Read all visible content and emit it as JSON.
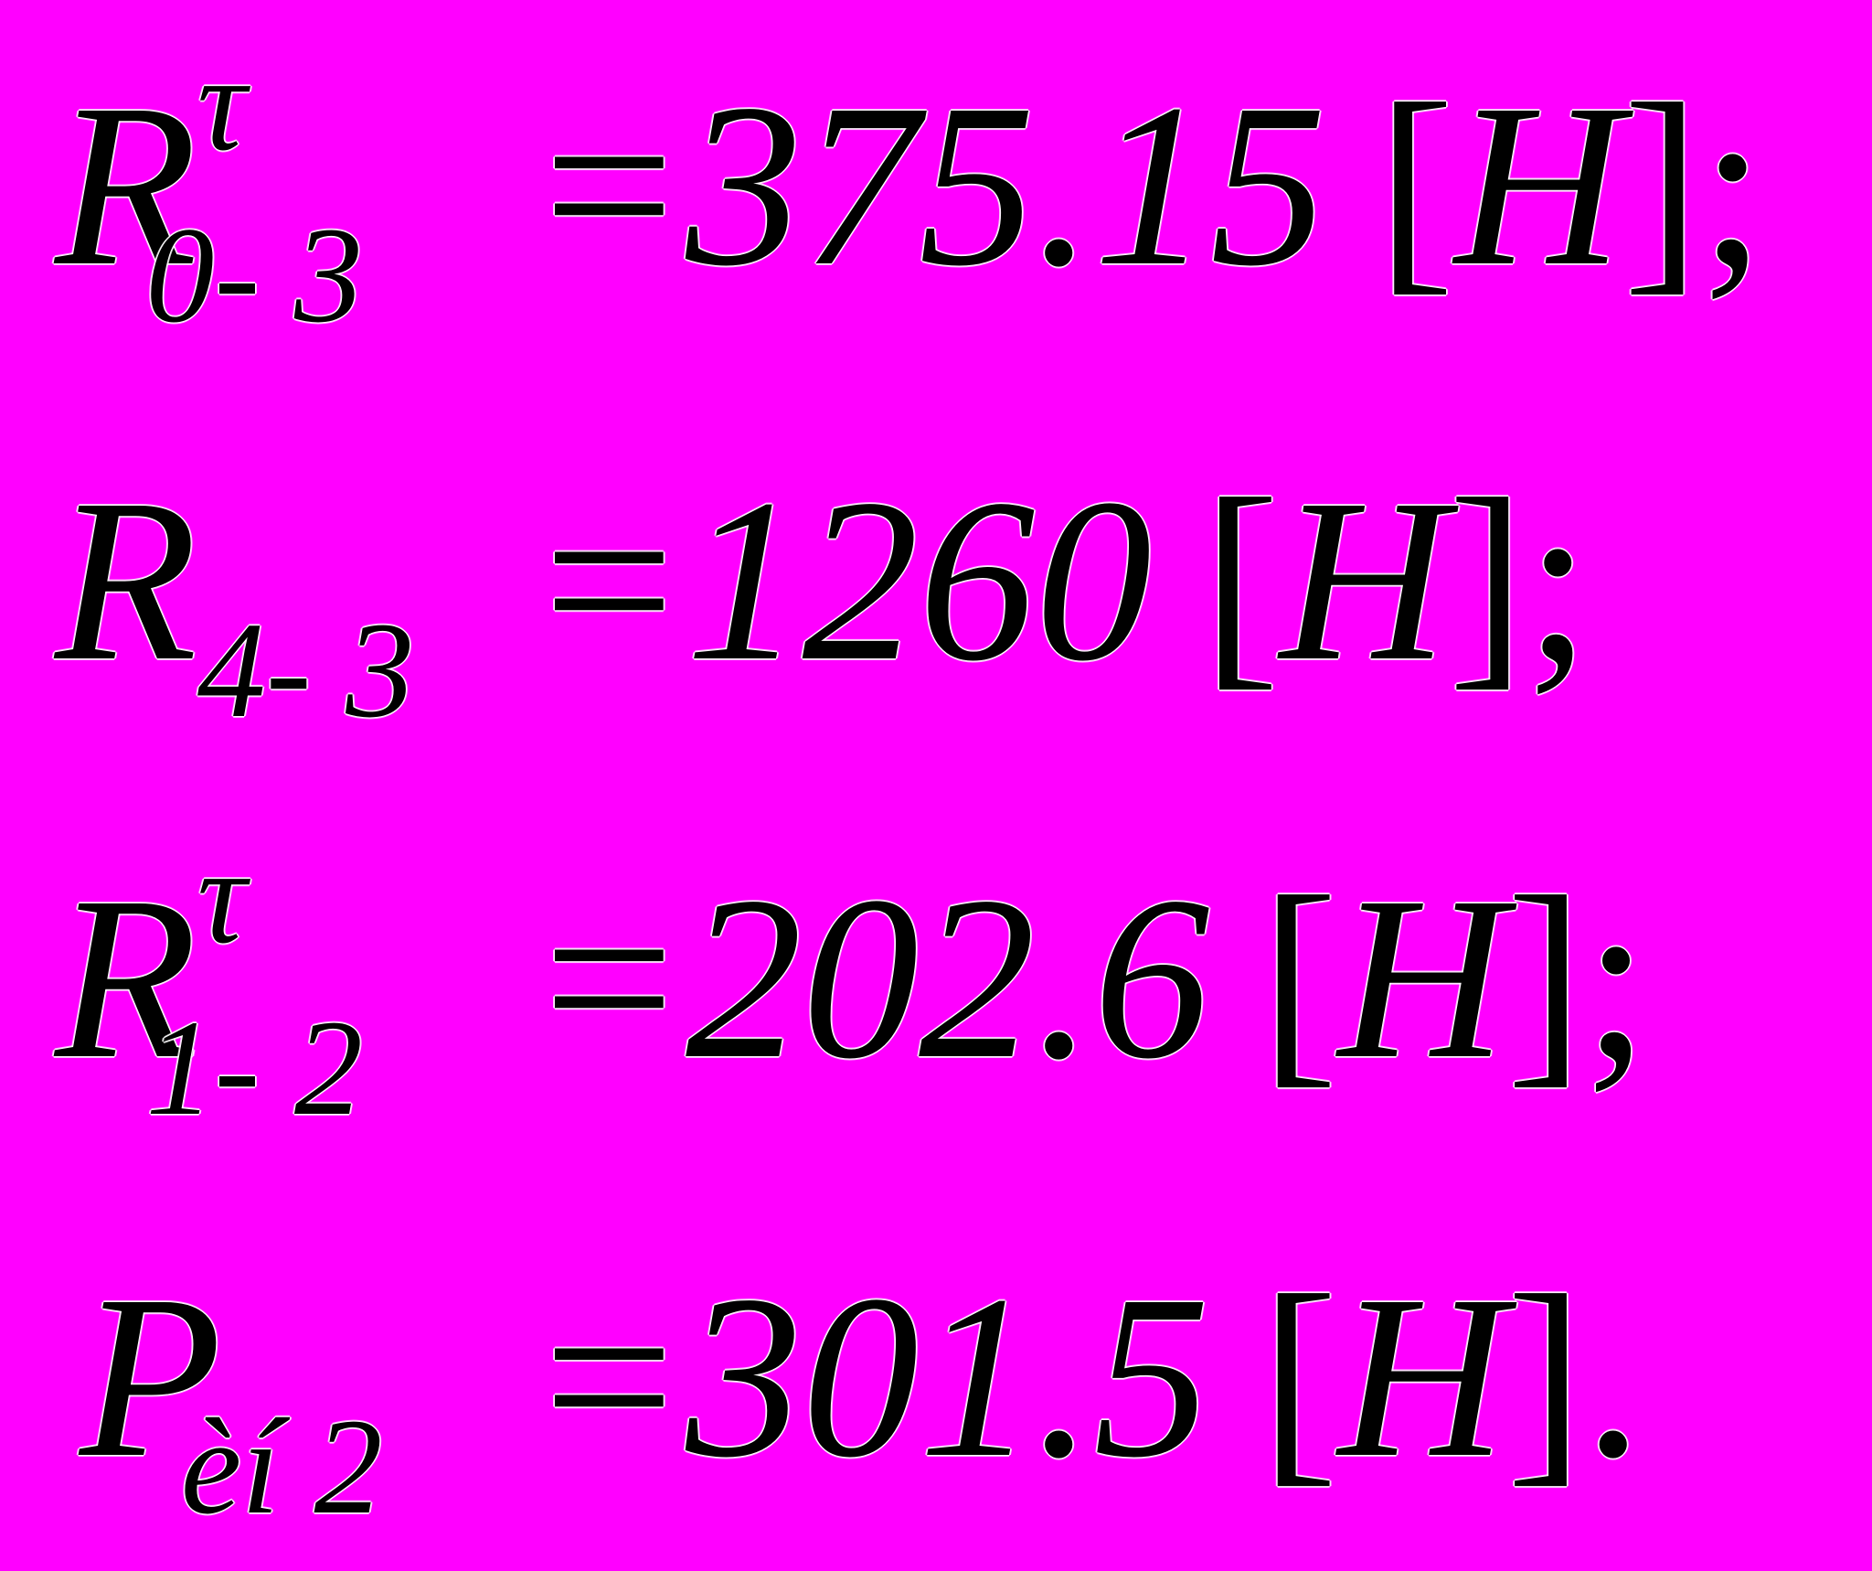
{
  "page": {
    "background_color": "#FF00FF",
    "text_color": "#000000",
    "equals_sign": "=",
    "bracket_open": "[",
    "bracket_close": "]"
  },
  "equations": [
    {
      "base": "R",
      "superscript": "τ",
      "subscript": "0- 3",
      "value": "375.15",
      "unit": "H",
      "punctuation": ";"
    },
    {
      "base": "R",
      "superscript": "",
      "subscript": "4- 3",
      "value": "1260",
      "unit": "H",
      "punctuation": ";"
    },
    {
      "base": "R",
      "superscript": "τ",
      "subscript": "1- 2",
      "value": "202.6",
      "unit": "H",
      "punctuation": ";"
    },
    {
      "base": "P",
      "superscript": "",
      "subscript": "èí 2",
      "value": "301.5",
      "unit": "H",
      "punctuation": "."
    }
  ]
}
